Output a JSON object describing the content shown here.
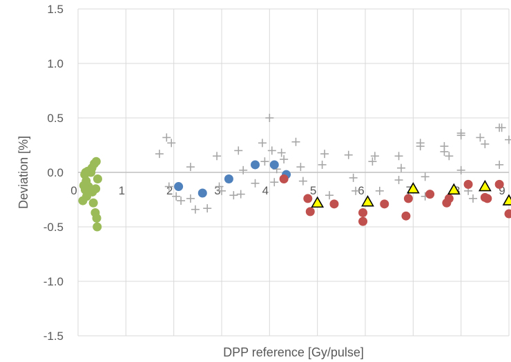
{
  "chart_data": {
    "type": "scatter",
    "title": "",
    "xlabel": "DPP reference  [Gy/pulse]",
    "ylabel": "Deviation [%]",
    "xlim": [
      0,
      9
    ],
    "ylim": [
      -1.5,
      1.5
    ],
    "x_ticks": [
      "0",
      "1",
      "2",
      "3",
      "4",
      "5",
      "6",
      "7",
      "8",
      "9"
    ],
    "y_ticks": [
      "1.5",
      "1.0",
      "0.5",
      "0.0",
      "-0.5",
      "-1.0",
      "-1.5"
    ],
    "grid": true,
    "legend": "none",
    "series": [
      {
        "marker": "plus",
        "color": "#a6a6a6",
        "points": [
          [
            1.7,
            0.17
          ],
          [
            1.85,
            0.32
          ],
          [
            1.95,
            0.27
          ],
          [
            1.9,
            -0.13
          ],
          [
            2.05,
            -0.22
          ],
          [
            2.15,
            -0.26
          ],
          [
            2.35,
            0.05
          ],
          [
            2.35,
            -0.24
          ],
          [
            2.45,
            -0.34
          ],
          [
            2.7,
            -0.33
          ],
          [
            2.9,
            0.15
          ],
          [
            2.95,
            -0.13
          ],
          [
            3.0,
            -0.17
          ],
          [
            3.25,
            -0.21
          ],
          [
            3.35,
            0.2
          ],
          [
            3.45,
            0.02
          ],
          [
            3.4,
            -0.2
          ],
          [
            3.7,
            -0.1
          ],
          [
            3.85,
            0.27
          ],
          [
            3.9,
            0.1
          ],
          [
            4.0,
            0.5
          ],
          [
            4.05,
            0.2
          ],
          [
            4.1,
            -0.09
          ],
          [
            4.15,
            0.03
          ],
          [
            4.25,
            0.18
          ],
          [
            4.3,
            0.12
          ],
          [
            4.55,
            0.28
          ],
          [
            4.65,
            0.05
          ],
          [
            4.7,
            -0.08
          ],
          [
            5.1,
            0.07
          ],
          [
            5.15,
            0.17
          ],
          [
            5.25,
            -0.21
          ],
          [
            5.65,
            0.16
          ],
          [
            5.75,
            -0.05
          ],
          [
            5.8,
            -0.17
          ],
          [
            6.15,
            0.1
          ],
          [
            6.2,
            0.15
          ],
          [
            6.3,
            -0.17
          ],
          [
            6.7,
            0.15
          ],
          [
            6.7,
            -0.07
          ],
          [
            6.75,
            0.04
          ],
          [
            7.15,
            0.27
          ],
          [
            7.15,
            0.24
          ],
          [
            7.25,
            -0.04
          ],
          [
            7.25,
            -0.22
          ],
          [
            7.65,
            0.24
          ],
          [
            7.65,
            0.19
          ],
          [
            7.75,
            0.15
          ],
          [
            8.0,
            0.36
          ],
          [
            8.0,
            0.34
          ],
          [
            8.0,
            0.02
          ],
          [
            8.15,
            -0.17
          ],
          [
            8.25,
            -0.24
          ],
          [
            8.4,
            0.32
          ],
          [
            8.5,
            0.26
          ],
          [
            8.8,
            0.41
          ],
          [
            8.85,
            0.41
          ],
          [
            8.8,
            0.07
          ],
          [
            9.0,
            0.3
          ]
        ]
      },
      {
        "marker": "circle",
        "color": "#4f81bd",
        "points": [
          [
            2.1,
            -0.13
          ],
          [
            2.6,
            -0.19
          ],
          [
            3.15,
            -0.06
          ],
          [
            3.7,
            0.07
          ],
          [
            4.1,
            0.07
          ],
          [
            4.35,
            -0.02
          ]
        ]
      },
      {
        "marker": "circle",
        "color": "#9bbb59",
        "points": [
          [
            0.1,
            -0.26
          ],
          [
            0.12,
            -0.12
          ],
          [
            0.14,
            -0.02
          ],
          [
            0.15,
            -0.16
          ],
          [
            0.16,
            0.0
          ],
          [
            0.17,
            -0.08
          ],
          [
            0.18,
            -0.22
          ],
          [
            0.2,
            0.01
          ],
          [
            0.21,
            -0.18
          ],
          [
            0.22,
            -0.13
          ],
          [
            0.25,
            -0.15
          ],
          [
            0.27,
            0.0
          ],
          [
            0.29,
            0.04
          ],
          [
            0.3,
            -0.18
          ],
          [
            0.32,
            -0.28
          ],
          [
            0.34,
            0.08
          ],
          [
            0.36,
            -0.37
          ],
          [
            0.37,
            -0.15
          ],
          [
            0.38,
            0.1
          ],
          [
            0.39,
            -0.42
          ],
          [
            0.41,
            -0.06
          ],
          [
            0.4,
            -0.5
          ]
        ]
      },
      {
        "marker": "circle",
        "color": "#c0504d",
        "points": [
          [
            4.3,
            -0.06
          ],
          [
            4.8,
            -0.24
          ],
          [
            4.85,
            -0.36
          ],
          [
            5.35,
            -0.29
          ],
          [
            5.95,
            -0.37
          ],
          [
            5.95,
            -0.45
          ],
          [
            6.4,
            -0.29
          ],
          [
            6.85,
            -0.4
          ],
          [
            6.9,
            -0.24
          ],
          [
            7.35,
            -0.2
          ],
          [
            7.7,
            -0.28
          ],
          [
            7.75,
            -0.24
          ],
          [
            8.15,
            -0.11
          ],
          [
            8.5,
            -0.23
          ],
          [
            8.55,
            -0.24
          ],
          [
            8.8,
            -0.11
          ],
          [
            9.0,
            -0.38
          ]
        ]
      },
      {
        "marker": "triangle",
        "color": "#ffff00",
        "points": [
          [
            5.0,
            -0.28
          ],
          [
            6.05,
            -0.27
          ],
          [
            7.0,
            -0.15
          ],
          [
            7.85,
            -0.16
          ],
          [
            8.5,
            -0.13
          ],
          [
            9.0,
            -0.26
          ]
        ]
      }
    ]
  }
}
